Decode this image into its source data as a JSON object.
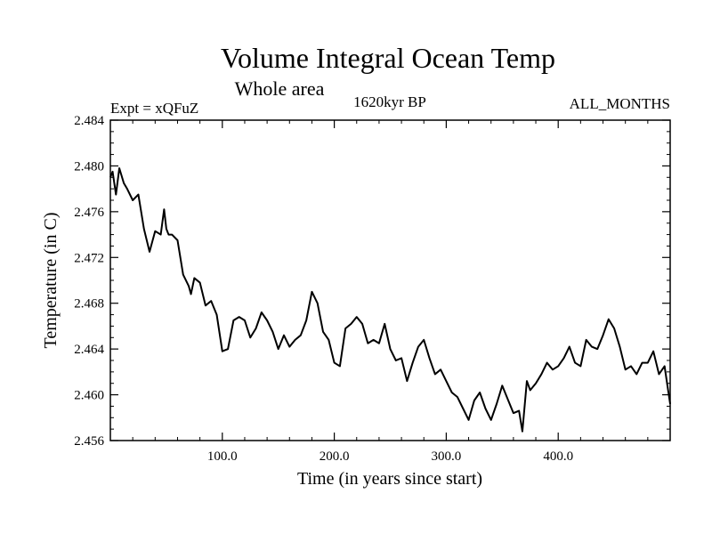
{
  "chart_data": {
    "type": "line",
    "title": "Volume Integral Ocean Temp",
    "subtitle": "Whole area",
    "annotations": {
      "left": "Expt = xQFuZ",
      "center": "1620kyr BP",
      "right": "ALL_MONTHS"
    },
    "xlabel": "Time (in years since start)",
    "ylabel": "Temperature (in C)",
    "xlim": [
      0,
      500
    ],
    "ylim": [
      2.456,
      2.484
    ],
    "xticks": [
      100,
      200,
      300,
      400
    ],
    "xtick_labels": [
      "100.0",
      "200.0",
      "300.0",
      "400.0"
    ],
    "yticks": [
      2.456,
      2.46,
      2.464,
      2.468,
      2.472,
      2.476,
      2.48,
      2.484
    ],
    "ytick_labels": [
      "2.456",
      "2.460",
      "2.464",
      "2.468",
      "2.472",
      "2.476",
      "2.480",
      "2.484"
    ],
    "grid": false,
    "series": [
      {
        "name": "Temperature",
        "x": [
          0,
          2,
          5,
          8,
          12,
          15,
          20,
          25,
          30,
          35,
          40,
          45,
          48,
          50,
          52,
          55,
          60,
          65,
          70,
          72,
          75,
          80,
          85,
          90,
          95,
          100,
          105,
          110,
          115,
          120,
          125,
          130,
          135,
          140,
          145,
          150,
          155,
          160,
          165,
          170,
          175,
          180,
          185,
          190,
          195,
          200,
          205,
          210,
          215,
          220,
          225,
          230,
          235,
          240,
          245,
          250,
          255,
          260,
          265,
          270,
          275,
          280,
          285,
          290,
          295,
          300,
          305,
          310,
          315,
          320,
          325,
          330,
          335,
          340,
          345,
          350,
          355,
          360,
          365,
          368,
          372,
          375,
          380,
          385,
          390,
          395,
          400,
          405,
          410,
          415,
          420,
          425,
          430,
          435,
          440,
          445,
          450,
          455,
          460,
          465,
          470,
          475,
          480,
          485,
          490,
          495,
          498,
          500
        ],
        "y": [
          2.479,
          2.4795,
          2.4775,
          2.4798,
          2.4785,
          2.478,
          2.477,
          2.4775,
          2.4745,
          2.4725,
          2.4743,
          2.474,
          2.4762,
          2.4745,
          2.474,
          2.474,
          2.4735,
          2.4705,
          2.4695,
          2.4688,
          2.4702,
          2.4698,
          2.4678,
          2.4682,
          2.467,
          2.4638,
          2.464,
          2.4665,
          2.4668,
          2.4665,
          2.465,
          2.4658,
          2.4672,
          2.4665,
          2.4655,
          2.464,
          2.4652,
          2.4642,
          2.4648,
          2.4652,
          2.4665,
          2.469,
          2.468,
          2.4655,
          2.4648,
          2.4628,
          2.4625,
          2.4658,
          2.4662,
          2.4668,
          2.4662,
          2.4645,
          2.4648,
          2.4645,
          2.4662,
          2.464,
          2.463,
          2.4632,
          2.4612,
          2.4628,
          2.4642,
          2.4648,
          2.4632,
          2.4618,
          2.4622,
          2.4612,
          2.4602,
          2.4598,
          2.4588,
          2.4578,
          2.4595,
          2.4602,
          2.4588,
          2.4578,
          2.4592,
          2.4608,
          2.4596,
          2.4584,
          2.4586,
          2.4568,
          2.4612,
          2.4604,
          2.461,
          2.4618,
          2.4628,
          2.4622,
          2.4625,
          2.4632,
          2.4642,
          2.4628,
          2.4625,
          2.4648,
          2.4642,
          2.464,
          2.4652,
          2.4666,
          2.4658,
          2.4642,
          2.4622,
          2.4625,
          2.4618,
          2.4628,
          2.4628,
          2.4638,
          2.4618,
          2.4625,
          2.4605,
          2.4592
        ]
      }
    ]
  }
}
